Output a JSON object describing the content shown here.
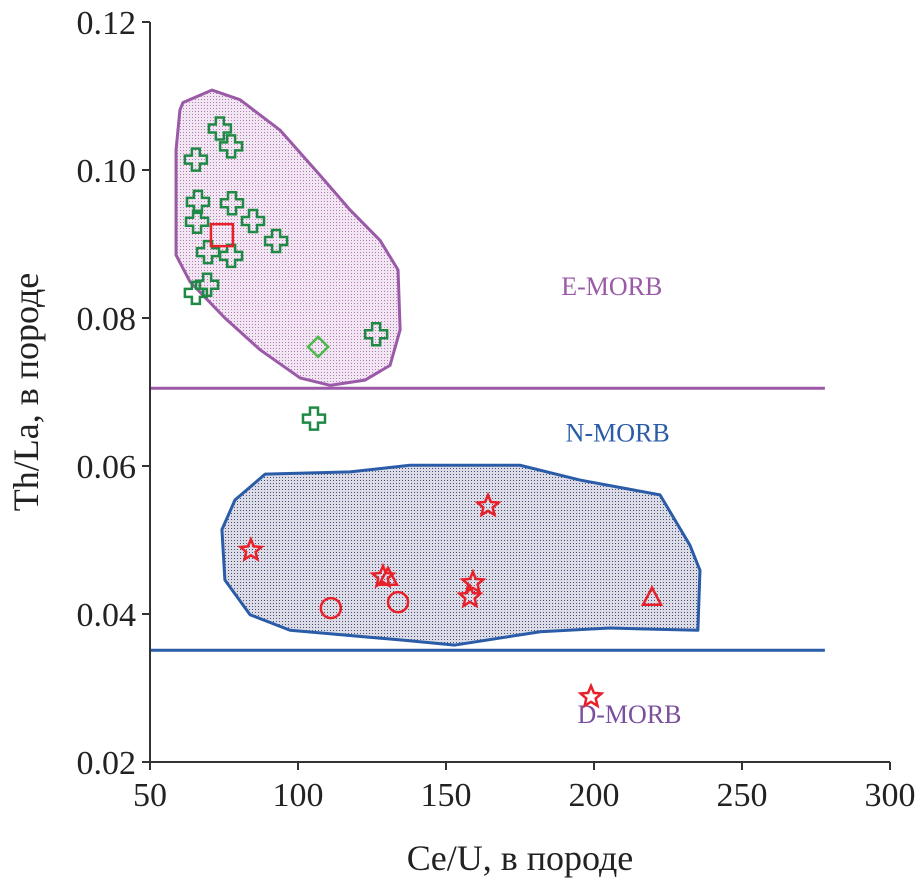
{
  "chart_data": {
    "type": "scatter",
    "xlabel": "Ce/U, в породе",
    "ylabel": "Th/La, в породе",
    "xlim": [
      50,
      300
    ],
    "ylim": [
      0.02,
      0.12
    ],
    "xticks": [
      "50",
      "100",
      "150",
      "200",
      "250",
      "300"
    ],
    "yticks": [
      "0.02",
      "0.04",
      "0.06",
      "0.08",
      "0.10",
      "0.12"
    ],
    "grid": false,
    "colors": {
      "emorb": "#9b5aa8",
      "nmorb": "#2a5ca8",
      "dmorb": "#7b4f9e",
      "green": "#1f8a45",
      "red": "#e8202a",
      "light_green": "#4cb84c"
    },
    "reference_lines": [
      {
        "label": "E-MORB",
        "y": 0.0705,
        "x_end": 278,
        "color": "#9b5aa8"
      },
      {
        "label": "N-MORB",
        "y": 0.0351,
        "x_end": 278,
        "color": "#2a5ca8"
      }
    ],
    "region_labels": [
      {
        "text": "E-MORB",
        "x": 206,
        "y": 0.0831,
        "color": "#9b5aa8"
      },
      {
        "text": "N-MORB",
        "x": 208,
        "y": 0.0633,
        "color": "#2a5ca8"
      },
      {
        "text": "D-MORB",
        "x": 212,
        "y": 0.0253,
        "color": "#7b4f9e"
      }
    ],
    "fields": [
      {
        "color": "#9b5aa8",
        "fill": "#e6cfe6",
        "points": [
          [
            61.1,
            0.1091
          ],
          [
            70.9,
            0.1108
          ],
          [
            80.4,
            0.1095
          ],
          [
            93.9,
            0.1054
          ],
          [
            107.4,
            0.0993
          ],
          [
            117.6,
            0.0946
          ],
          [
            127.7,
            0.0905
          ],
          [
            133.8,
            0.0865
          ],
          [
            134.5,
            0.0784
          ],
          [
            131.1,
            0.0736
          ],
          [
            122.6,
            0.0716
          ],
          [
            110.8,
            0.0709
          ],
          [
            100.7,
            0.0719
          ],
          [
            87.2,
            0.0757
          ],
          [
            75.3,
            0.08
          ],
          [
            63.5,
            0.0849
          ],
          [
            58.8,
            0.0885
          ],
          [
            58.8,
            0.1027
          ],
          [
            60.1,
            0.1081
          ]
        ]
      },
      {
        "color": "#2a5ca8",
        "fill": "#c9cad6",
        "points": [
          [
            88.9,
            0.0589
          ],
          [
            117.6,
            0.0592
          ],
          [
            137.8,
            0.0601
          ],
          [
            175.0,
            0.0601
          ],
          [
            195.3,
            0.0581
          ],
          [
            222.3,
            0.0561
          ],
          [
            232.4,
            0.0493
          ],
          [
            235.8,
            0.0459
          ],
          [
            235.1,
            0.0378
          ],
          [
            205.4,
            0.0381
          ],
          [
            181.8,
            0.0376
          ],
          [
            153.0,
            0.0358
          ],
          [
            134.5,
            0.0365
          ],
          [
            97.3,
            0.0378
          ],
          [
            83.8,
            0.0399
          ],
          [
            75.3,
            0.0446
          ],
          [
            74.3,
            0.0514
          ],
          [
            78.7,
            0.0554
          ]
        ]
      }
    ],
    "series": [
      {
        "marker": "cross",
        "color": "#1f8a45",
        "points": [
          [
            73.6,
            0.1056
          ],
          [
            77.4,
            0.1032
          ],
          [
            65.5,
            0.1014
          ],
          [
            66.2,
            0.0957
          ],
          [
            77.7,
            0.0955
          ],
          [
            65.9,
            0.093
          ],
          [
            84.8,
            0.0931
          ],
          [
            92.6,
            0.0904
          ],
          [
            69.6,
            0.0889
          ],
          [
            77.4,
            0.0884
          ],
          [
            69.3,
            0.0845
          ],
          [
            65.5,
            0.0834
          ],
          [
            126.4,
            0.0778
          ],
          [
            105.4,
            0.0664
          ]
        ]
      },
      {
        "marker": "diamond",
        "color": "#4cb84c",
        "points": [
          [
            106.8,
            0.0761
          ]
        ]
      },
      {
        "marker": "square",
        "color": "#e8202a",
        "points": [
          [
            74.3,
            0.0912
          ]
        ]
      },
      {
        "marker": "star",
        "color": "#e8202a",
        "points": [
          [
            84.1,
            0.0486
          ],
          [
            164.2,
            0.0546
          ],
          [
            128.7,
            0.045
          ],
          [
            159.1,
            0.0442
          ],
          [
            158.1,
            0.0423
          ],
          [
            199.0,
            0.0288
          ]
        ]
      },
      {
        "marker": "triangle",
        "color": "#e8202a",
        "points": [
          [
            130.4,
            0.0449
          ],
          [
            219.6,
            0.0422
          ]
        ]
      },
      {
        "marker": "circle",
        "color": "#e8202a",
        "points": [
          [
            111.1,
            0.0408
          ],
          [
            133.8,
            0.0416
          ]
        ]
      }
    ]
  }
}
